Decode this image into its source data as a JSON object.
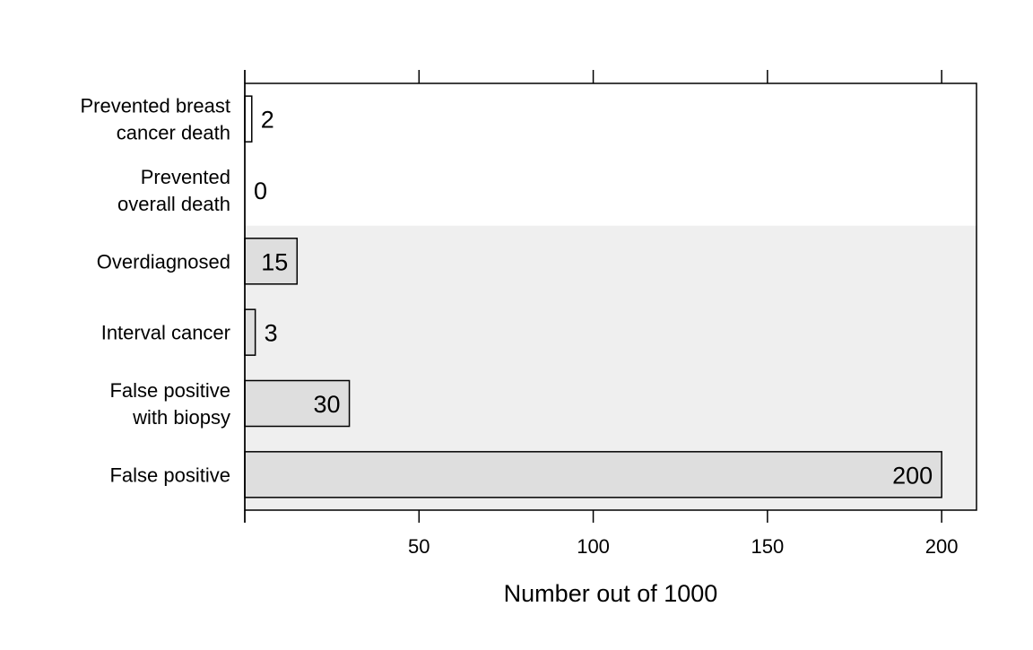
{
  "chart_data": {
    "type": "bar",
    "orientation": "horizontal",
    "categories": [
      "Prevented breast\ncancer death",
      "Prevented\noverall death",
      "Overdiagnosed",
      "Interval cancer",
      "False positive\nwith biopsy",
      "False positive"
    ],
    "values": [
      2,
      0,
      15,
      3,
      30,
      200
    ],
    "data_labels": [
      "2",
      "0",
      "15",
      "3",
      "30",
      "200"
    ],
    "groups": [
      "benefit",
      "benefit",
      "harm",
      "harm",
      "harm",
      "harm"
    ],
    "title": "",
    "xlabel": "Number out of 1000",
    "ylabel": "",
    "xlim": [
      0,
      210
    ],
    "xticks": [
      0,
      50,
      100,
      150,
      200
    ],
    "xtick_labels": [
      "",
      "50",
      "100",
      "150",
      "200"
    ],
    "grid": false,
    "colors": {
      "benefit_bar": "#ffffff",
      "harm_bar": "#dedede",
      "harm_background": "#efefef",
      "outline": "#000000"
    }
  }
}
